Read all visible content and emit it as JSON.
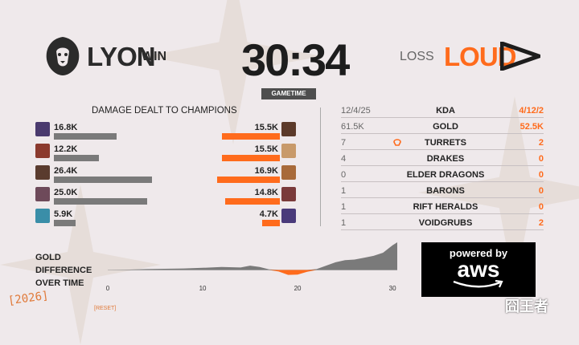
{
  "header": {
    "left_team": "LYON",
    "left_result": "WIN",
    "right_team": "LOUD",
    "right_result": "LOSS",
    "time": "30:34",
    "time_label": "GAMETIME"
  },
  "damage": {
    "title": "DAMAGE DEALT TO CHAMPIONS",
    "max_value_k": 26.4,
    "left": [
      {
        "label": "16.8K",
        "value": 16.8,
        "color": "#4a3a6e"
      },
      {
        "label": "12.2K",
        "value": 12.2,
        "color": "#8b3a2e"
      },
      {
        "label": "26.4K",
        "value": 26.4,
        "color": "#5a3b2e"
      },
      {
        "label": "25.0K",
        "value": 25.0,
        "color": "#6e4a5a"
      },
      {
        "label": "5.9K",
        "value": 5.9,
        "color": "#3a8ea8"
      }
    ],
    "right": [
      {
        "label": "15.5K",
        "value": 15.5,
        "color": "#5c3a2a"
      },
      {
        "label": "15.5K",
        "value": 15.5,
        "color": "#c89a6a"
      },
      {
        "label": "16.9K",
        "value": 16.9,
        "color": "#a86a3a"
      },
      {
        "label": "14.8K",
        "value": 14.8,
        "color": "#7a3a3a"
      },
      {
        "label": "4.7K",
        "value": 4.7,
        "color": "#4a3a7a"
      }
    ]
  },
  "stats": [
    {
      "left": "12/4/25",
      "label": "KDA",
      "right": "4/12/2"
    },
    {
      "left": "61.5K",
      "label": "GOLD",
      "right": "52.5K"
    },
    {
      "left": "7",
      "label": "TURRETS",
      "right": "2"
    },
    {
      "left": "4",
      "label": "DRAKES",
      "right": "0"
    },
    {
      "left": "0",
      "label": "ELDER DRAGONS",
      "right": "0"
    },
    {
      "left": "1",
      "label": "BARONS",
      "right": "0"
    },
    {
      "left": "1",
      "label": "RIFT HERALDS",
      "right": "0"
    },
    {
      "left": "1",
      "label": "VOIDGRUBS",
      "right": "2"
    }
  ],
  "gold_graph": {
    "label_lines": [
      "GOLD",
      "DIFFERENCE",
      "OVER TIME"
    ],
    "xticks": [
      "0",
      "10",
      "20",
      "30"
    ],
    "chart_data": {
      "type": "area",
      "x": [
        0,
        2,
        4,
        6,
        8,
        10,
        12,
        14,
        15,
        16,
        17,
        18,
        19,
        20,
        21,
        22,
        23,
        24,
        25,
        26,
        27,
        28,
        29,
        30,
        30.5
      ],
      "y": [
        0,
        100,
        300,
        400,
        500,
        700,
        1000,
        800,
        1400,
        1000,
        200,
        -500,
        -1600,
        -1500,
        -600,
        300,
        1400,
        2500,
        3200,
        3400,
        4000,
        4600,
        5600,
        8000,
        9000
      ],
      "xlim": [
        0,
        30.5
      ],
      "ylim": [
        -3000,
        9000
      ],
      "positive_color": "#7a7a7a",
      "negative_color": "#ff6b1c"
    }
  },
  "sponsor": {
    "line1": "powered by",
    "line2": "aws"
  },
  "watermarks": {
    "year": "[2026]",
    "reset": "[RESET]",
    "cn": "囧王者"
  }
}
